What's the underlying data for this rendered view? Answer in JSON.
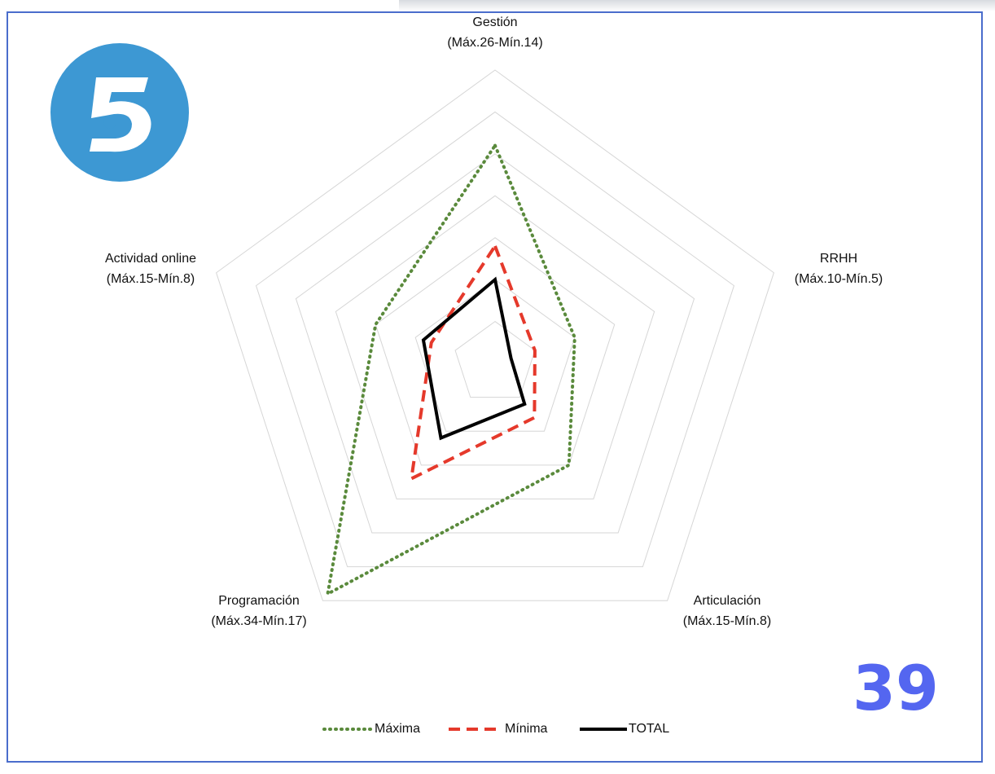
{
  "chart_data": {
    "type": "radar",
    "categories": [
      "Gestión",
      "RRHH",
      "Articulación",
      "Programación",
      "Actividad online"
    ],
    "category_ranges": [
      "(Máx.26-Mín.14)",
      "(Máx.10-Mín.5)",
      "(Máx.15-Mín.8)",
      "(Máx.34-Mín.17)",
      "(Máx.15-Mín.8)"
    ],
    "series": [
      {
        "name": "Máxima",
        "color": "#5a8a3c",
        "dash": "dotted",
        "values": [
          26,
          10,
          15,
          34,
          15
        ]
      },
      {
        "name": "Mínima",
        "color": "#e5392b",
        "dash": "dashed",
        "values": [
          14,
          5,
          8,
          17,
          8
        ]
      },
      {
        "name": "TOTAL",
        "color": "#000000",
        "dash": "solid",
        "values": [
          10,
          2,
          6,
          11,
          9
        ]
      }
    ],
    "rlim": [
      0,
      35
    ],
    "rticks": [
      0,
      5,
      10,
      15,
      20,
      25,
      30,
      35
    ],
    "grid": true,
    "legend": "bottom"
  },
  "page_number": "39"
}
